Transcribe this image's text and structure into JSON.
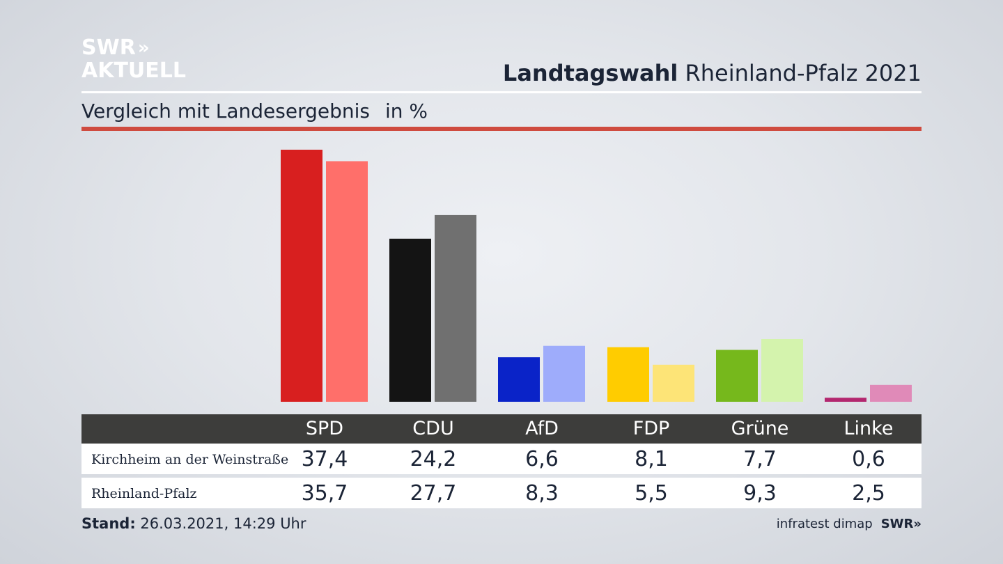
{
  "logo": {
    "line1": "SWR",
    "chevrons": "»",
    "line2": "AKTUELL"
  },
  "header": {
    "title_bold": "Landtagswahl",
    "title_rest": "Rheinland-Pfalz 2021",
    "subtitle": "Vergleich mit Landesergebnis",
    "unit": "in %"
  },
  "colors": {
    "accent_rule": "#cf4b3f",
    "table_header_bg": "#3d3d3b"
  },
  "chart_data": {
    "type": "bar",
    "categories": [
      "SPD",
      "CDU",
      "AfD",
      "FDP",
      "Grüne",
      "Linke"
    ],
    "series": [
      {
        "name": "Kirchheim an der Weinstraße",
        "values": [
          37.4,
          24.2,
          6.6,
          8.1,
          7.7,
          0.6
        ],
        "colors": [
          "#d81f1f",
          "#141414",
          "#0a23c8",
          "#ffcc00",
          "#76b81c",
          "#b3276f"
        ]
      },
      {
        "name": "Rheinland-Pfalz",
        "values": [
          35.7,
          27.7,
          8.3,
          5.5,
          9.3,
          2.5
        ],
        "colors": [
          "#ff6f6a",
          "#707070",
          "#9eacfb",
          "#fde477",
          "#d4f3ad",
          "#e08ab8"
        ]
      }
    ],
    "ylim": [
      0,
      37.4
    ]
  },
  "table": {
    "rows": [
      {
        "label": "Kirchheim an der Weinstraße",
        "values": [
          "37,4",
          "24,2",
          "6,6",
          "8,1",
          "7,7",
          "0,6"
        ]
      },
      {
        "label": "Rheinland-Pfalz",
        "values": [
          "35,7",
          "27,7",
          "8,3",
          "5,5",
          "9,3",
          "2,5"
        ]
      }
    ]
  },
  "footer": {
    "stand_label": "Stand:",
    "stand_value": "26.03.2021, 14:29 Uhr",
    "source": "infratest dimap",
    "source_logo": "SWR»"
  }
}
